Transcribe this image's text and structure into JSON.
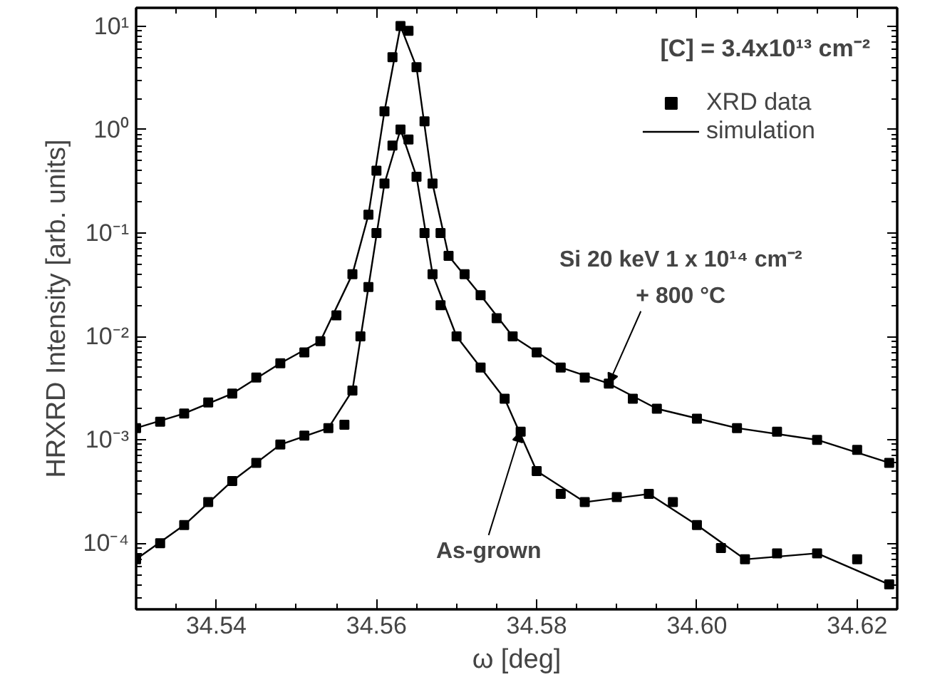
{
  "chart_data": {
    "type": "scatter",
    "xlabel": "ω [deg]",
    "ylabel": "HRXRD Intensity [arb. units]",
    "log": "y",
    "xlim": [
      34.53,
      34.625
    ],
    "ylim": [
      2.3e-05,
      15
    ],
    "xticks": [
      {
        "value": 34.54,
        "label": "34.54"
      },
      {
        "value": 34.56,
        "label": "34.56"
      },
      {
        "value": 34.58,
        "label": "34.58"
      },
      {
        "value": 34.6,
        "label": "34.60"
      },
      {
        "value": 34.62,
        "label": "34.62"
      }
    ],
    "yticks": [
      {
        "value": 0.0001,
        "label": "10⁻⁴"
      },
      {
        "value": 0.001,
        "label": "10⁻³"
      },
      {
        "value": 0.01,
        "label": "10⁻²"
      },
      {
        "value": 0.1,
        "label": "10⁻¹"
      },
      {
        "value": 1,
        "label": "10⁰"
      },
      {
        "value": 10,
        "label": "10¹"
      }
    ],
    "grid": false,
    "legend": "top right",
    "series": [
      {
        "name": "XRD data",
        "marker": "square",
        "color": "#000000",
        "x": [
          34.53,
          34.533,
          34.536,
          34.539,
          34.542,
          34.545,
          34.548,
          34.551,
          34.553,
          34.555,
          34.557,
          34.559,
          34.56,
          34.561,
          34.562,
          34.563,
          34.564,
          34.565,
          34.566,
          34.567,
          34.568,
          34.569,
          34.571,
          34.573,
          34.575,
          34.577,
          34.58,
          34.583,
          34.586,
          34.589,
          34.592,
          34.595,
          34.6,
          34.605,
          34.61,
          34.615,
          34.62,
          34.624
        ],
        "values": [
          0.0013,
          0.0015,
          0.0018,
          0.0023,
          0.0028,
          0.004,
          0.0055,
          0.007,
          0.009,
          0.016,
          0.04,
          0.15,
          0.4,
          1.5,
          5,
          10,
          9,
          4,
          1.2,
          0.3,
          0.1,
          0.06,
          0.04,
          0.025,
          0.015,
          0.01,
          0.007,
          0.005,
          0.004,
          0.0035,
          0.0025,
          0.002,
          0.0016,
          0.0013,
          0.0012,
          0.001,
          0.0008,
          0.0006
        ]
      },
      {
        "marker": "square",
        "color": "#000000",
        "x": [
          34.53,
          34.533,
          34.536,
          34.539,
          34.542,
          34.545,
          34.548,
          34.551,
          34.554,
          34.556,
          34.557,
          34.558,
          34.559,
          34.56,
          34.561,
          34.562,
          34.563,
          34.564,
          34.565,
          34.566,
          34.567,
          34.568,
          34.57,
          34.573,
          34.576,
          34.578,
          34.58,
          34.583,
          34.586,
          34.59,
          34.594,
          34.597,
          34.6,
          34.603,
          34.606,
          34.61,
          34.615,
          34.62,
          34.624
        ],
        "values": [
          7e-05,
          0.0001,
          0.00015,
          0.00025,
          0.0004,
          0.0006,
          0.0009,
          0.0011,
          0.0013,
          0.0014,
          0.003,
          0.01,
          0.03,
          0.1,
          0.3,
          0.7,
          1.0,
          0.8,
          0.35,
          0.1,
          0.04,
          0.02,
          0.01,
          0.005,
          0.0025,
          0.0012,
          0.0005,
          0.0003,
          0.00025,
          0.00028,
          0.0003,
          0.00025,
          0.00015,
          9e-05,
          7e-05,
          8e-05,
          8e-05,
          7e-05,
          4e-05
        ]
      },
      {
        "name": "simulation",
        "type": "line",
        "color": "#000000",
        "line_style": "solid",
        "x": [
          34.53,
          34.536,
          34.542,
          34.548,
          34.553,
          34.557,
          34.559,
          34.561,
          34.563,
          34.565,
          34.567,
          34.569,
          34.573,
          34.577,
          34.583,
          34.589,
          34.595,
          34.605,
          34.615,
          34.624
        ],
        "values": [
          0.0013,
          0.0018,
          0.0028,
          0.0055,
          0.009,
          0.04,
          0.15,
          1.5,
          10,
          4,
          0.3,
          0.06,
          0.025,
          0.01,
          0.005,
          0.0035,
          0.002,
          0.0013,
          0.001,
          0.0006
        ]
      },
      {
        "type": "line",
        "color": "#000000",
        "line_style": "solid",
        "x": [
          34.53,
          34.536,
          34.542,
          34.548,
          34.554,
          34.557,
          34.559,
          34.561,
          34.563,
          34.565,
          34.567,
          34.57,
          34.576,
          34.58,
          34.586,
          34.594,
          34.6,
          34.606,
          34.615,
          34.624
        ],
        "values": [
          7e-05,
          0.00015,
          0.0004,
          0.0009,
          0.0013,
          0.003,
          0.03,
          0.3,
          1.0,
          0.35,
          0.04,
          0.01,
          0.0025,
          0.0005,
          0.00025,
          0.0003,
          0.00015,
          7e-05,
          8e-05,
          4e-05
        ]
      }
    ],
    "annotations": [
      "[C] = 3.4x10¹³ cm⁻²",
      {
        "text": "Si 20 keV 1 x 10¹⁴ cm⁻²\n+ 800 °C",
        "x": 34.589,
        "y": 0.0035
      },
      {
        "text": "As-grown",
        "x": 34.578,
        "y": 0.0012
      }
    ]
  }
}
